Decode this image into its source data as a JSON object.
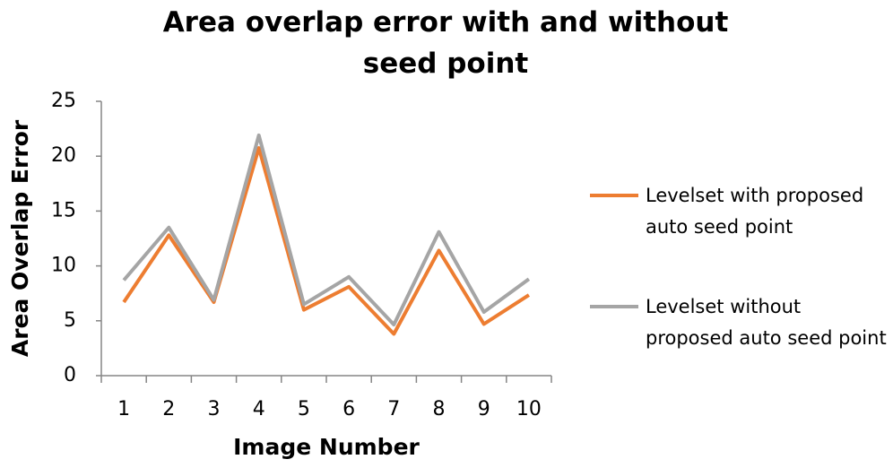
{
  "chart_data": {
    "type": "line",
    "title": "Area overlap error with and without seed point",
    "x_label": "Image Number",
    "y_label": "Area Overlap Error",
    "categories": [
      "1",
      "2",
      "3",
      "4",
      "5",
      "6",
      "7",
      "8",
      "9",
      "10"
    ],
    "series": [
      {
        "name": "Levelset with proposed auto seed point",
        "color": "#ed7d31",
        "values": [
          6.7,
          12.8,
          6.7,
          20.75,
          6.0,
          8.1,
          3.8,
          11.4,
          4.7,
          7.35
        ]
      },
      {
        "name": "Levelset without proposed auto seed point",
        "color": "#a5a5a5",
        "values": [
          8.7,
          13.5,
          6.9,
          21.9,
          6.5,
          9.0,
          4.65,
          13.1,
          5.8,
          8.8
        ]
      }
    ],
    "ylim": [
      0,
      25
    ],
    "yticks": [
      0,
      5,
      10,
      15,
      20,
      25
    ],
    "grid": false,
    "legend": "right"
  }
}
